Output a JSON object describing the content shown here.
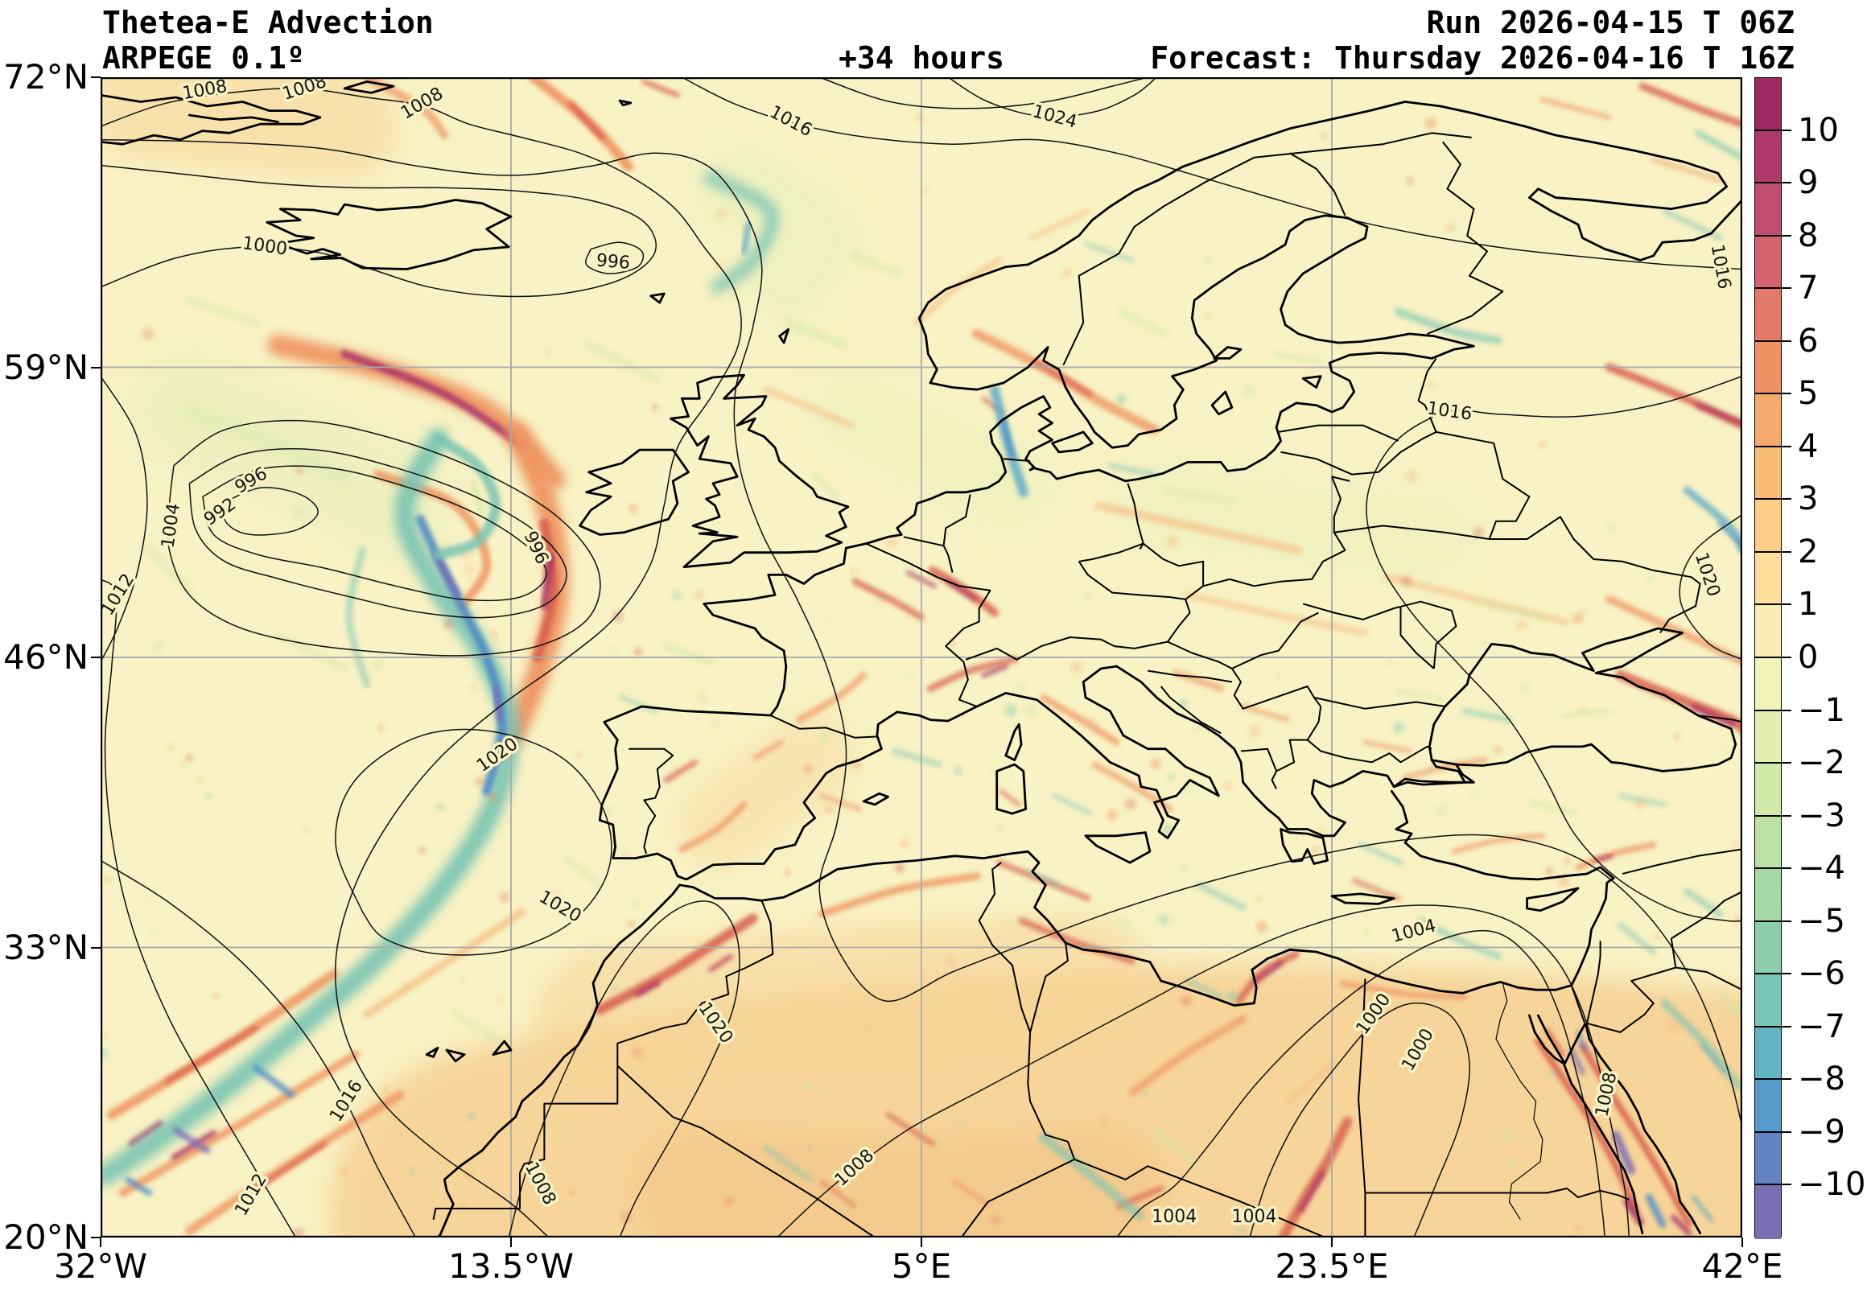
{
  "title": {
    "line1": "Thetea-E Advection",
    "line2": "ARPEGE 0.1º"
  },
  "lead_time": "+34 hours",
  "run_info": {
    "run_line": "Run 2026-04-15 T 06Z",
    "forecast_line": "Forecast: Thursday 2026-04-16 T 16Z"
  },
  "map": {
    "x_tick_labels": [
      "32°W",
      "13.5°W",
      "5°E",
      "23.5°E",
      "42°E"
    ],
    "y_tick_labels": [
      "72°N",
      "59°N",
      "46°N",
      "33°N",
      "20°N"
    ],
    "lon_min": -32,
    "lon_max": 42,
    "lat_min": 20,
    "lat_max": 72,
    "grid_color": "#a9a9a9",
    "coast_color": "#000000",
    "contour_color": "#101010"
  },
  "colorbar": {
    "tick_labels": [
      "10",
      "9",
      "8",
      "7",
      "6",
      "5",
      "4",
      "3",
      "2",
      "1",
      "0",
      "−1",
      "−2",
      "−3",
      "−4",
      "−5",
      "−6",
      "−7",
      "−8",
      "−9",
      "−10"
    ],
    "segment_colors": [
      "#9c2963",
      "#ae3a6d",
      "#c14e70",
      "#d36370",
      "#e27a69",
      "#ee9266",
      "#f6a96c",
      "#fabd77",
      "#fcce88",
      "#fdde9c",
      "#f9ecb2",
      "#f2f3ba",
      "#e4f0b2",
      "#d1e9a9",
      "#bce0a5",
      "#a5d8a6",
      "#8ecfad",
      "#79c5b6",
      "#64b3c3",
      "#589bca",
      "#6583c3",
      "#7b6eb4"
    ]
  },
  "isobars": {
    "contour_values": [
      992,
      996,
      1000,
      1004,
      1008,
      1012,
      1016,
      1020,
      1024
    ],
    "labels": [
      {
        "text": "992",
        "lon": -26.6,
        "lat": 52.5,
        "rot": -35
      },
      {
        "text": "996",
        "lon": -25.2,
        "lat": 53.9,
        "rot": -30
      },
      {
        "text": "996",
        "lon": -12.4,
        "lat": 50.9,
        "rot": 65
      },
      {
        "text": "996",
        "lon": -8.9,
        "lat": 63.7,
        "rot": 5
      },
      {
        "text": "1000",
        "lon": -24.6,
        "lat": 64.4,
        "rot": 8
      },
      {
        "text": "1000",
        "lon": 25.4,
        "lat": 30.0,
        "rot": -55
      },
      {
        "text": "1000",
        "lon": 27.4,
        "lat": 28.4,
        "rot": -60
      },
      {
        "text": "1004",
        "lon": -28.8,
        "lat": 51.9,
        "rot": -82
      },
      {
        "text": "1004",
        "lon": 27.2,
        "lat": 33.7,
        "rot": -15
      },
      {
        "text": "1004",
        "lon": 16.4,
        "lat": 20.9,
        "rot": 0
      },
      {
        "text": "1004",
        "lon": 20.0,
        "lat": 20.9,
        "rot": 0
      },
      {
        "text": "1008",
        "lon": -27.3,
        "lat": 71.4,
        "rot": -10
      },
      {
        "text": "1008",
        "lon": -22.8,
        "lat": 71.5,
        "rot": -18
      },
      {
        "text": "1008",
        "lon": -17.5,
        "lat": 70.8,
        "rot": -30
      },
      {
        "text": "1008",
        "lon": 2.0,
        "lat": 23.1,
        "rot": -42
      },
      {
        "text": "1008",
        "lon": 35.9,
        "lat": 26.4,
        "rot": -78
      },
      {
        "text": "1008",
        "lon": -12.2,
        "lat": 22.4,
        "rot": 62
      },
      {
        "text": "1012",
        "lon": -31.2,
        "lat": 48.8,
        "rot": -58
      },
      {
        "text": "1012",
        "lon": -25.2,
        "lat": 21.9,
        "rot": -60
      },
      {
        "text": "1016",
        "lon": -0.9,
        "lat": 70.0,
        "rot": 28
      },
      {
        "text": "1016",
        "lon": 28.8,
        "lat": 57.0,
        "rot": 8
      },
      {
        "text": "1016",
        "lon": 41.0,
        "lat": 63.5,
        "rot": 80
      },
      {
        "text": "1016",
        "lon": -20.9,
        "lat": 26.1,
        "rot": -58
      },
      {
        "text": "1020",
        "lon": -14.1,
        "lat": 41.6,
        "rot": -35
      },
      {
        "text": "1020",
        "lon": -11.3,
        "lat": 34.8,
        "rot": 30
      },
      {
        "text": "1020",
        "lon": -4.3,
        "lat": 29.6,
        "rot": 55
      },
      {
        "text": "1020",
        "lon": 40.4,
        "lat": 49.7,
        "rot": 72
      },
      {
        "text": "1024",
        "lon": 11.0,
        "lat": 70.2,
        "rot": 15
      }
    ]
  },
  "field": {
    "name": "Theta-E advection (shaded)",
    "palette": {
      "base": "#f8f2c4",
      "sand": "#f7d398",
      "sand2": "#f2c282",
      "o1": "#f6b97e",
      "o2": "#ef9460",
      "r2": "#d8604f",
      "m": "#a93266",
      "m2": "#c04465",
      "g": "#cfe8a8",
      "g2": "#e7efbb",
      "t": "#79c4b4",
      "tb": "#57a7c7",
      "b": "#4f8cc5",
      "p": "#7a6db3"
    }
  }
}
